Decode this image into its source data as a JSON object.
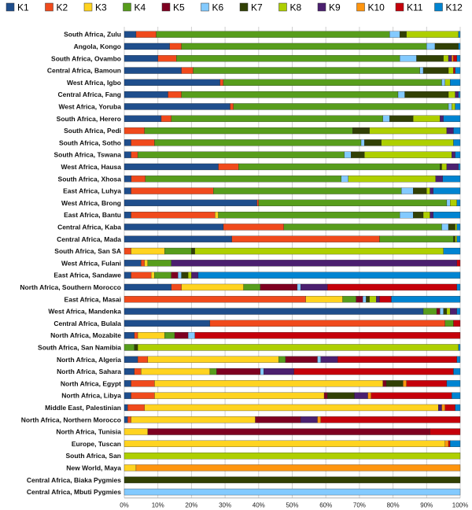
{
  "chart_data": {
    "type": "bar",
    "orientation": "horizontal",
    "stacked": true,
    "normalized": true,
    "xlim": [
      0,
      100
    ],
    "x_ticks": [
      "0%",
      "10%",
      "20%",
      "30%",
      "40%",
      "50%",
      "60%",
      "70%",
      "80%",
      "90%",
      "100%"
    ],
    "grid": true,
    "legend_position": "top",
    "series": [
      {
        "name": "K1",
        "color": "#1f4e8c"
      },
      {
        "name": "K2",
        "color": "#f04a1c"
      },
      {
        "name": "K3",
        "color": "#ffd320"
      },
      {
        "name": "K4",
        "color": "#579d1c"
      },
      {
        "name": "K5",
        "color": "#7e0021"
      },
      {
        "name": "K6",
        "color": "#83caff"
      },
      {
        "name": "K7",
        "color": "#314004"
      },
      {
        "name": "K8",
        "color": "#aecf00"
      },
      {
        "name": "K9",
        "color": "#4b1f6f"
      },
      {
        "name": "K10",
        "color": "#ff950e"
      },
      {
        "name": "K11",
        "color": "#c5000b"
      },
      {
        "name": "K12",
        "color": "#0084d1"
      }
    ],
    "categories": [
      "South Africa,  Zulu",
      "Angola, Kongo",
      "South Africa, Ovambo",
      "Central Africa, Bamoun",
      "West Africa, Igbo",
      "Central Africa, Fang",
      "West Africa, Yoruba",
      "South Africa, Herero",
      "South Africa, Pedi",
      "South Africa, Sotho",
      "South Africa,  Tswana",
      "West Africa, Hausa",
      "South Africa, Xhosa",
      "East Africa, Luhya",
      "West Africa, Brong",
      "East Africa, Bantu",
      "Central Africa, Kaba",
      "Central Africa, Mada",
      "South Africa, San SA",
      "West Africa, Fulani",
      "East Africa, Sandawe",
      "North Africa, Southern Morocco",
      "East Africa, Masai",
      "West Africa, Mandenka",
      "Central Africa, Bulala",
      "North Africa, Mozabite",
      "South Africa, San Namibia",
      "North Africa, Algeria",
      "North Africa, Sahara",
      "North Africa, Egypt",
      "North Africa, Libya",
      "Middle East, Palestinian",
      "North Africa, Northern Morocco",
      "North Africa, Tunisia",
      "Europe, Tuscan",
      "South Africa, San",
      "New World, Maya",
      "Central Africa, Biaka Pygmies",
      "Central Africa, Mbuti Pygmies"
    ],
    "values": [
      [
        3.5,
        6,
        0,
        69.5,
        0,
        3,
        2,
        15.5,
        0,
        0,
        0,
        0.5
      ],
      [
        13.5,
        3.5,
        0,
        73,
        0,
        2.5,
        7,
        0,
        0,
        0,
        0,
        0.5
      ],
      [
        10,
        5.5,
        0,
        66.5,
        0,
        5,
        8,
        1.5,
        1,
        0.5,
        1,
        1
      ],
      [
        17,
        3.5,
        0,
        67.5,
        0,
        1,
        7.5,
        1.5,
        0,
        0,
        0.5,
        1.5
      ],
      [
        28.5,
        1,
        0,
        65,
        0,
        1,
        0,
        1.5,
        0,
        0,
        0,
        3
      ],
      [
        13,
        4,
        0,
        64.5,
        0,
        2,
        13,
        2,
        1,
        0,
        0,
        0.5
      ],
      [
        31.5,
        1,
        0,
        64,
        0,
        1,
        0,
        1,
        0,
        0,
        0,
        1.5
      ],
      [
        11,
        3,
        0,
        63,
        0,
        2,
        7,
        8,
        1,
        0,
        0,
        5
      ],
      [
        0,
        6,
        0,
        62,
        0,
        0,
        5,
        23,
        2,
        0,
        0,
        2
      ],
      [
        2,
        7,
        0,
        61.5,
        0,
        1,
        5,
        21.5,
        0,
        0,
        0,
        2
      ],
      [
        2,
        2,
        0,
        61.5,
        0,
        2,
        4,
        26,
        1,
        0,
        0,
        1.5
      ],
      [
        28,
        6,
        0,
        60,
        0,
        0,
        0.5,
        1.5,
        3.5,
        0,
        0,
        0.5
      ],
      [
        2,
        4,
        0,
        56,
        0,
        2,
        0,
        25,
        2,
        0,
        0,
        5
      ],
      [
        2,
        24.5,
        0,
        56,
        0,
        3.5,
        4,
        1,
        1,
        0,
        0,
        8
      ],
      [
        39.5,
        0.5,
        0,
        56,
        0,
        1,
        0,
        2,
        0,
        0,
        0,
        1
      ],
      [
        2,
        25,
        1,
        54,
        0,
        4,
        3,
        2,
        1,
        0,
        0,
        8
      ],
      [
        29.5,
        18,
        0,
        47,
        0,
        2,
        2,
        0.5,
        0,
        0,
        0,
        1
      ],
      [
        32,
        44,
        0,
        22,
        0,
        0,
        0.5,
        0.5,
        0,
        0,
        0,
        1
      ],
      [
        0,
        2,
        10,
        8,
        0,
        0,
        1,
        74,
        0,
        0,
        0,
        5
      ],
      [
        5,
        1,
        1,
        7,
        0,
        0,
        0,
        0,
        85,
        0,
        1,
        0
      ],
      [
        2,
        6,
        1,
        5,
        2,
        1,
        2,
        1,
        2,
        0,
        0,
        78
      ],
      [
        14,
        3,
        18.5,
        5,
        11,
        1,
        0,
        0,
        8,
        0,
        38.5,
        1
      ],
      [
        0,
        54,
        11,
        4,
        2,
        1,
        1,
        2,
        1,
        0,
        3.5,
        20.5
      ],
      [
        89,
        0,
        0,
        4,
        1,
        1,
        1,
        1,
        2,
        0,
        0,
        1
      ],
      [
        25.5,
        70,
        0,
        2.5,
        0,
        0,
        0,
        0,
        0,
        0,
        2,
        0
      ],
      [
        3,
        1,
        8,
        3,
        4,
        2,
        0,
        0,
        0,
        0,
        79,
        0
      ],
      [
        0,
        0,
        0,
        3,
        0,
        0,
        1,
        95.5,
        0,
        0,
        0,
        0.5
      ],
      [
        4,
        3,
        39,
        2,
        9.5,
        1,
        0,
        0,
        5,
        0,
        35.5,
        1
      ],
      [
        3,
        2,
        20.5,
        2,
        13,
        1,
        0,
        0,
        9,
        0,
        47.5,
        2
      ],
      [
        2,
        7,
        68,
        0,
        1,
        0,
        5,
        0,
        0,
        1,
        12,
        4
      ],
      [
        2,
        7,
        50.5,
        0,
        1,
        0,
        8,
        0,
        4,
        1,
        24,
        2.5
      ],
      [
        1,
        5,
        87.5,
        0,
        0,
        0,
        0,
        0,
        1,
        1,
        3,
        1.5
      ],
      [
        1,
        1,
        37,
        0,
        13.5,
        0,
        0,
        0,
        5,
        1,
        41.5,
        0
      ],
      [
        0,
        0,
        7,
        0,
        84,
        0,
        0,
        0,
        0,
        0,
        9,
        0
      ],
      [
        0,
        0,
        95.5,
        0,
        0,
        0,
        0,
        0,
        0,
        1,
        0.5,
        3
      ],
      [
        0,
        0,
        0,
        0,
        0,
        0,
        0,
        100,
        0,
        0,
        0,
        0
      ],
      [
        0,
        0,
        3.5,
        0,
        0,
        0,
        0,
        0,
        0,
        96.5,
        0,
        0
      ],
      [
        0,
        0,
        0,
        0,
        0,
        0,
        100,
        0,
        0,
        0,
        0,
        0
      ],
      [
        0,
        0,
        0,
        0,
        0,
        100,
        0,
        0,
        0,
        0,
        0,
        0
      ]
    ]
  }
}
